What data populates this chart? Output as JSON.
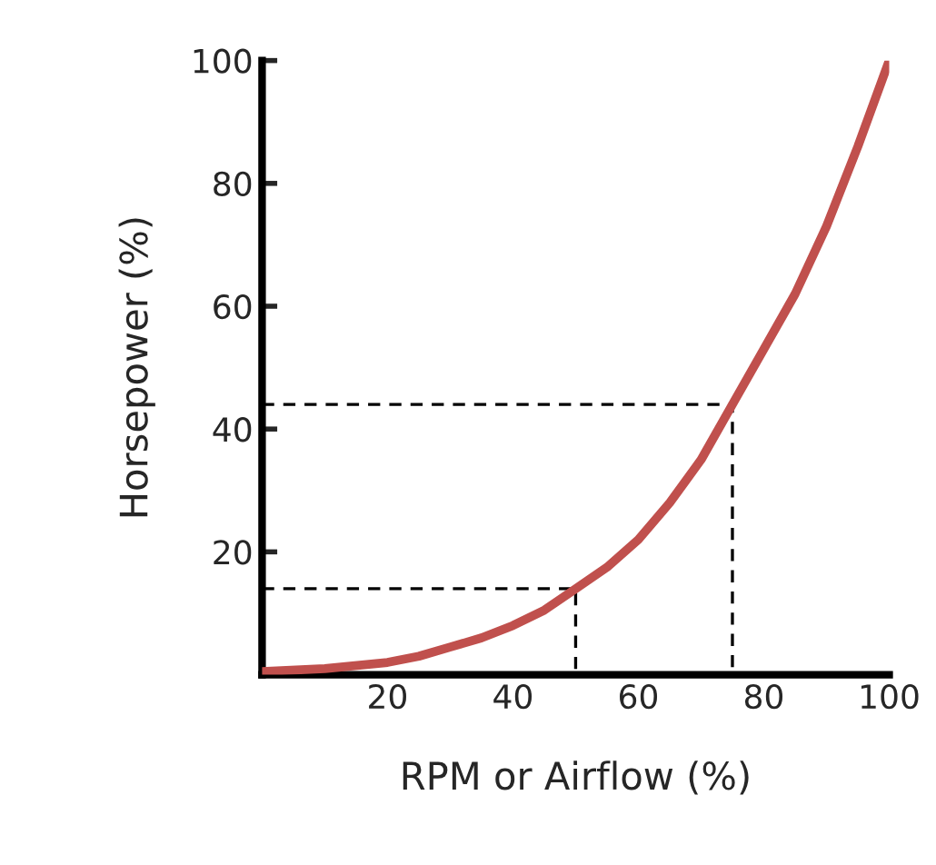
{
  "chart_data": {
    "type": "line",
    "xlabel": "RPM or Airflow (%)",
    "ylabel": "Horsepower (%)",
    "xlim": [
      0,
      100
    ],
    "ylim": [
      0,
      100
    ],
    "xticks": [
      20,
      40,
      60,
      80,
      100
    ],
    "yticks": [
      20,
      40,
      60,
      80,
      100
    ],
    "grid": false,
    "series": [
      {
        "color": "#c0504d",
        "line_style": "solid",
        "x": [
          0,
          10,
          20,
          25,
          30,
          35,
          40,
          45,
          50,
          55,
          60,
          65,
          70,
          75,
          80,
          85,
          90,
          95,
          100
        ],
        "values": [
          0.5,
          1,
          2,
          3,
          4.5,
          6,
          8,
          10.5,
          14,
          17.5,
          22,
          28,
          35,
          44,
          53,
          62,
          73,
          86,
          100
        ]
      },
      {
        "color": "#000000",
        "line_style": "dashed",
        "x": [
          0,
          50,
          50
        ],
        "values": [
          14,
          14,
          0
        ]
      },
      {
        "color": "#000000",
        "line_style": "dashed",
        "x": [
          0,
          75,
          75
        ],
        "values": [
          44,
          44,
          0
        ]
      }
    ]
  }
}
